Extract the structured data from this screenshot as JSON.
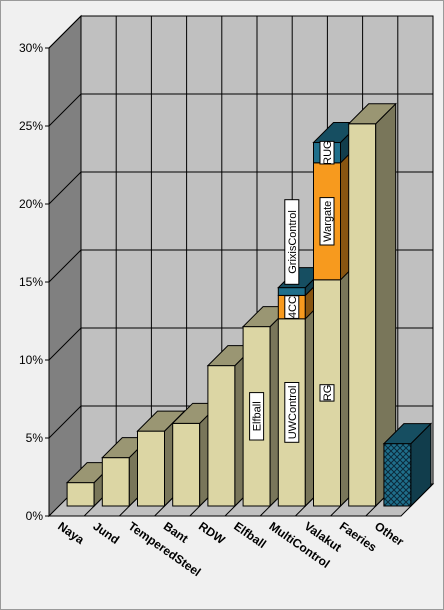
{
  "chart_data": {
    "type": "bar",
    "stacked": true,
    "three_d": true,
    "title": "",
    "xlabel": "",
    "ylabel": "",
    "ylim": [
      0,
      30
    ],
    "y_ticks": [
      0,
      5,
      10,
      15,
      20,
      25,
      30
    ],
    "y_tick_labels": [
      "0%",
      "5%",
      "10%",
      "15%",
      "20%",
      "25%",
      "30%"
    ],
    "grid": true,
    "legend": "none",
    "categories": [
      "Naya",
      "Jund",
      "TemperedSteel",
      "Bant",
      "RDW",
      "Elfball",
      "MultiControl",
      "Valakut",
      "Faeries",
      "Other"
    ],
    "bars": [
      {
        "category": "Naya",
        "segments": [
          {
            "label": "",
            "value": 1.5,
            "color": "#dcd6a4"
          }
        ]
      },
      {
        "category": "Jund",
        "segments": [
          {
            "label": "",
            "value": 3.1,
            "color": "#dcd6a4"
          }
        ]
      },
      {
        "category": "TemperedSteel",
        "segments": [
          {
            "label": "",
            "value": 4.8,
            "color": "#dcd6a4"
          }
        ]
      },
      {
        "category": "Bant",
        "segments": [
          {
            "label": "",
            "value": 5.3,
            "color": "#dcd6a4"
          }
        ]
      },
      {
        "category": "RDW",
        "segments": [
          {
            "label": "",
            "value": 9.0,
            "color": "#dcd6a4"
          }
        ]
      },
      {
        "category": "Elfball",
        "segments": [
          {
            "label": "Elfball",
            "value": 11.5,
            "color": "#dcd6a4"
          }
        ]
      },
      {
        "category": "MultiControl",
        "segments": [
          {
            "label": "UWControl",
            "value": 12.0,
            "color": "#dcd6a4"
          },
          {
            "label": "4CC",
            "value": 1.5,
            "color": "#f79a1e"
          },
          {
            "label": "GrixisControl",
            "value": 0.5,
            "color": "#1f6f8b"
          }
        ]
      },
      {
        "category": "Valakut",
        "segments": [
          {
            "label": "RG",
            "value": 14.5,
            "color": "#dcd6a4"
          },
          {
            "label": "Wargate",
            "value": 7.5,
            "color": "#f79a1e"
          },
          {
            "label": "RUG",
            "value": 1.3,
            "color": "#1f6f8b"
          }
        ]
      },
      {
        "category": "Faeries",
        "segments": [
          {
            "label": "",
            "value": 24.5,
            "color": "#dcd6a4"
          }
        ]
      },
      {
        "category": "Other",
        "segments": [
          {
            "label": "",
            "value": 4.0,
            "color": "#1f6f8b",
            "pattern": "crosshatch"
          }
        ]
      }
    ]
  }
}
